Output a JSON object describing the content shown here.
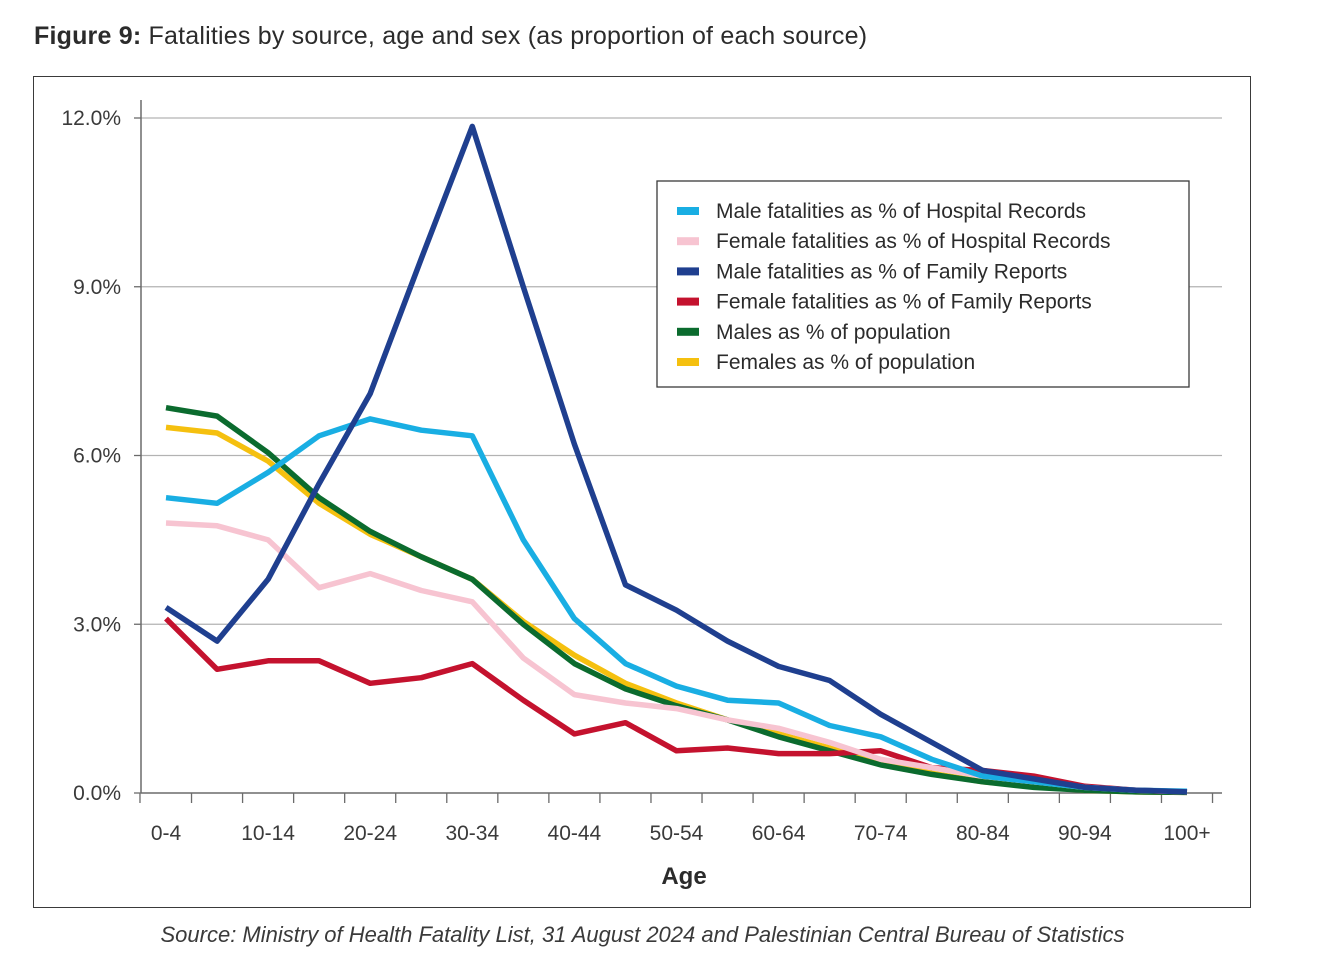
{
  "figure": {
    "label": "Figure 9:",
    "title": "Fatalities by source, age and sex (as proportion of each source)",
    "source": "Source: Ministry of Health Fatality List, 31 August 2024 and Palestinian Central Bureau of Statistics"
  },
  "chart_data": {
    "type": "line",
    "title": "Fatalities by source, age and sex (as proportion of each source)",
    "xlabel": "Age",
    "ylabel": "",
    "ylim": [
      0,
      12
    ],
    "yticks": [
      "0.0%",
      "3.0%",
      "6.0%",
      "9.0%",
      "12.0%"
    ],
    "ytick_values": [
      0,
      3,
      6,
      9,
      12
    ],
    "grid": "horizontal",
    "legend_position": "top-right",
    "categories": [
      "0-4",
      "5-9",
      "10-14",
      "15-19",
      "20-24",
      "25-29",
      "30-34",
      "35-39",
      "40-44",
      "45-49",
      "50-54",
      "55-59",
      "60-64",
      "65-69",
      "70-74",
      "75-79",
      "80-84",
      "85-89",
      "90-94",
      "95-99",
      "100+"
    ],
    "xtick_labels": [
      "0-4",
      "10-14",
      "20-24",
      "30-34",
      "40-44",
      "50-54",
      "60-64",
      "70-74",
      "80-84",
      "90-94",
      "100+"
    ],
    "series": [
      {
        "name": "Male fatalities as % of Hospital Records",
        "color": "#19aee3",
        "values": [
          5.25,
          5.15,
          5.7,
          6.35,
          6.65,
          6.45,
          6.35,
          4.5,
          3.1,
          2.3,
          1.9,
          1.65,
          1.6,
          1.2,
          1.0,
          0.6,
          0.3,
          0.2,
          0.1,
          0.05,
          0.03
        ]
      },
      {
        "name": "Female fatalities as % of Hospital Records",
        "color": "#f7c4d1",
        "values": [
          4.8,
          4.75,
          4.5,
          3.65,
          3.9,
          3.6,
          3.4,
          2.4,
          1.75,
          1.6,
          1.5,
          1.3,
          1.15,
          0.9,
          0.6,
          0.45,
          0.3,
          0.2,
          0.1,
          0.05,
          0.02
        ]
      },
      {
        "name": "Male fatalities as % of Family Reports",
        "color": "#1f3f8f",
        "values": [
          3.3,
          2.7,
          3.8,
          5.5,
          7.1,
          9.5,
          11.85,
          9.0,
          6.2,
          3.7,
          3.25,
          2.7,
          2.25,
          2.0,
          1.4,
          0.9,
          0.4,
          0.25,
          0.1,
          0.05,
          0.02
        ]
      },
      {
        "name": "Female fatalities as % of Family Reports",
        "color": "#c4122e",
        "values": [
          3.1,
          2.2,
          2.35,
          2.35,
          1.95,
          2.05,
          2.3,
          1.65,
          1.05,
          1.25,
          0.75,
          0.8,
          0.7,
          0.7,
          0.75,
          0.45,
          0.4,
          0.3,
          0.12,
          0.05,
          0.02
        ]
      },
      {
        "name": "Males as % of population",
        "color": "#0b6b2e",
        "values": [
          6.85,
          6.7,
          6.05,
          5.25,
          4.65,
          4.2,
          3.8,
          3.0,
          2.3,
          1.85,
          1.55,
          1.3,
          1.0,
          0.75,
          0.5,
          0.33,
          0.2,
          0.1,
          0.05,
          0.02,
          0.01
        ]
      },
      {
        "name": "Females as % of population",
        "color": "#f5c00f",
        "values": [
          6.5,
          6.4,
          5.9,
          5.15,
          4.6,
          4.2,
          3.8,
          3.05,
          2.45,
          1.95,
          1.6,
          1.3,
          1.05,
          0.8,
          0.55,
          0.35,
          0.2,
          0.12,
          0.05,
          0.02,
          0.01
        ]
      }
    ]
  }
}
